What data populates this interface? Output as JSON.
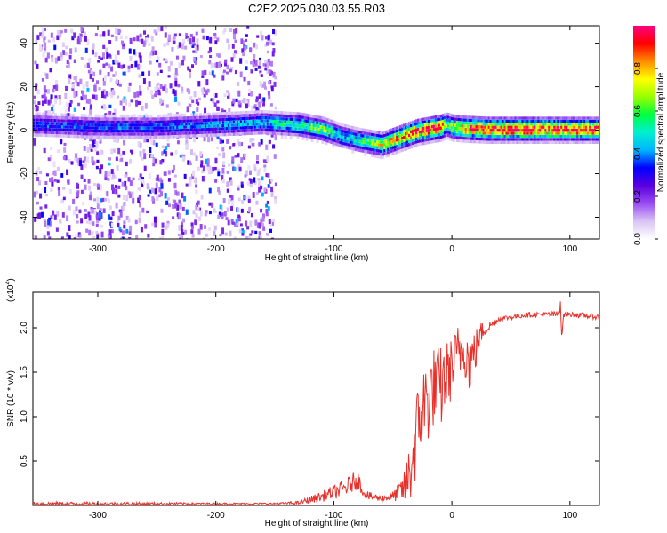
{
  "chart_data": [
    {
      "type": "heatmap",
      "title": "C2E2.2025.030.03.55.R03",
      "xlabel": "Height of straight line (km)",
      "ylabel": "Frequency (Hz)",
      "xlim": [
        -355,
        125
      ],
      "ylim": [
        -50,
        48
      ],
      "xticks": [
        -300,
        -200,
        -100,
        0,
        100
      ],
      "yticks": [
        -40,
        -20,
        0,
        20,
        40
      ],
      "colorbar": {
        "label": "Normalized spectral amplitude",
        "range": [
          0.0,
          1.0
        ],
        "ticks": [
          0.0,
          0.2,
          0.4,
          0.6,
          0.8
        ],
        "tick_labels": [
          "0.0",
          "0.2",
          "0.4",
          "0.6",
          "0.8"
        ],
        "colormap": [
          "#ffffff",
          "#d9c4f5",
          "#9a4cf2",
          "#5a00e0",
          "#0000ff",
          "#00b4ff",
          "#00f0d0",
          "#00ff40",
          "#9aff00",
          "#ffff00",
          "#ff8c00",
          "#ff0000",
          "#ff0080"
        ]
      },
      "ridge": {
        "x": [
          -355,
          -300,
          -250,
          -200,
          -160,
          -130,
          -110,
          -95,
          -80,
          -70,
          -60,
          -50,
          -40,
          -30,
          -20,
          -10,
          -5,
          0,
          10,
          30,
          60,
          90,
          125
        ],
        "y": [
          3,
          2,
          2,
          3,
          4,
          3,
          1,
          -2,
          -4,
          -5,
          -6,
          -4,
          -2,
          0,
          1,
          2,
          3,
          2,
          1.5,
          1,
          1,
          1,
          1
        ],
        "amplitude": [
          0.35,
          0.35,
          0.35,
          0.4,
          0.45,
          0.55,
          0.65,
          0.45,
          0.5,
          0.6,
          0.7,
          0.8,
          0.85,
          0.9,
          0.95,
          0.95,
          0.6,
          0.7,
          0.85,
          0.9,
          0.95,
          0.9,
          0.9
        ]
      },
      "scatter_region": {
        "x_from": -355,
        "x_to": -150,
        "y_from": -50,
        "y_to": 48,
        "amplitude_max": 0.25
      }
    },
    {
      "type": "line",
      "xlabel": "Height of straight line (km)",
      "ylabel": "SNR (10 * v/v)",
      "yscale_label": "(x10",
      "yscale_exponent": "4",
      "yscale_suffix": ")",
      "xlim": [
        -355,
        125
      ],
      "ylim": [
        0,
        2.4
      ],
      "xticks": [
        -300,
        -200,
        -100,
        0,
        100
      ],
      "yticks": [
        0.5,
        1.0,
        1.5,
        2.0
      ],
      "ytick_labels": [
        "0.5",
        "1.0",
        "1.5",
        "2.0"
      ],
      "series": [
        {
          "name": "SNR",
          "color": "#e8302a",
          "x": [
            -355,
            -300,
            -200,
            -150,
            -130,
            -110,
            -100,
            -90,
            -80,
            -75,
            -70,
            -60,
            -50,
            -45,
            -40,
            -35,
            -30,
            -25,
            -20,
            -15,
            -10,
            -5,
            0,
            5,
            10,
            15,
            20,
            25,
            30,
            40,
            50,
            60,
            70,
            80,
            90,
            92,
            93,
            95,
            100,
            110,
            125
          ],
          "y": [
            0.02,
            0.02,
            0.02,
            0.02,
            0.03,
            0.1,
            0.15,
            0.2,
            0.3,
            0.15,
            0.1,
            0.08,
            0.1,
            0.15,
            0.2,
            0.4,
            0.8,
            1.1,
            1.2,
            1.35,
            1.3,
            1.45,
            1.55,
            1.7,
            1.8,
            1.6,
            1.75,
            1.95,
            2.0,
            2.1,
            2.12,
            2.14,
            2.15,
            2.15,
            2.15,
            2.3,
            1.95,
            2.15,
            2.15,
            2.14,
            2.12
          ],
          "noise": [
            0.02,
            0.02,
            0.01,
            0.01,
            0.02,
            0.06,
            0.08,
            0.1,
            0.12,
            0.05,
            0.05,
            0.04,
            0.06,
            0.1,
            0.2,
            0.4,
            0.5,
            0.5,
            0.5,
            0.45,
            0.5,
            0.4,
            0.35,
            0.35,
            0.3,
            0.35,
            0.25,
            0.12,
            0.06,
            0.03,
            0.03,
            0.03,
            0.03,
            0.03,
            0.04,
            0.1,
            0.1,
            0.03,
            0.03,
            0.03,
            0.03
          ]
        }
      ]
    }
  ]
}
